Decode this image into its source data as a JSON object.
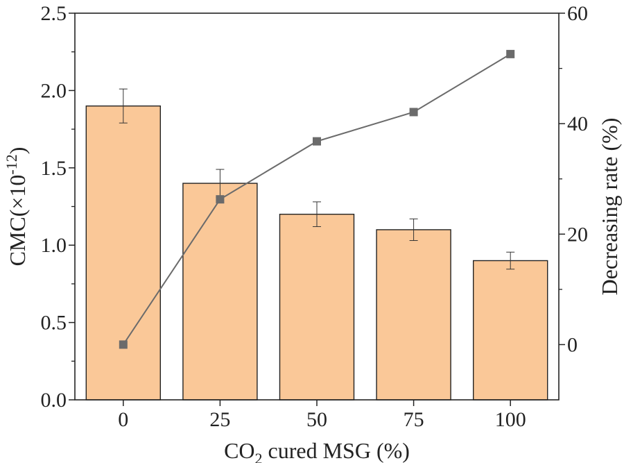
{
  "chart_data": {
    "type": "bar+line",
    "categories": [
      "0",
      "25",
      "50",
      "75",
      "100"
    ],
    "bars": {
      "name": "CMC",
      "values": [
        1.9,
        1.4,
        1.2,
        1.1,
        0.9
      ],
      "errors": [
        0.11,
        0.09,
        0.08,
        0.07,
        0.055
      ],
      "color": "#FAC898",
      "edge_color": "#222222"
    },
    "line": {
      "name": "Decreasing rate",
      "values": [
        0,
        26.3,
        36.8,
        42.1,
        52.6
      ],
      "color": "#6b6b6b"
    },
    "xlabel": {
      "main": "CO",
      "sub": "2",
      "rest": " cured MSG (%)"
    },
    "ylabel_left": {
      "main": "CMC(×10",
      "sup": "-12",
      "rest": ")"
    },
    "ylabel_right": "Decreasing rate (%)",
    "ylim_left": [
      0,
      2.5
    ],
    "ylim_right": [
      -10,
      60
    ],
    "yticks_left": [
      "0.0",
      "0.5",
      "1.0",
      "1.5",
      "2.0",
      "2.5"
    ],
    "yticks_right": [
      "0",
      "20",
      "40",
      "60"
    ]
  }
}
